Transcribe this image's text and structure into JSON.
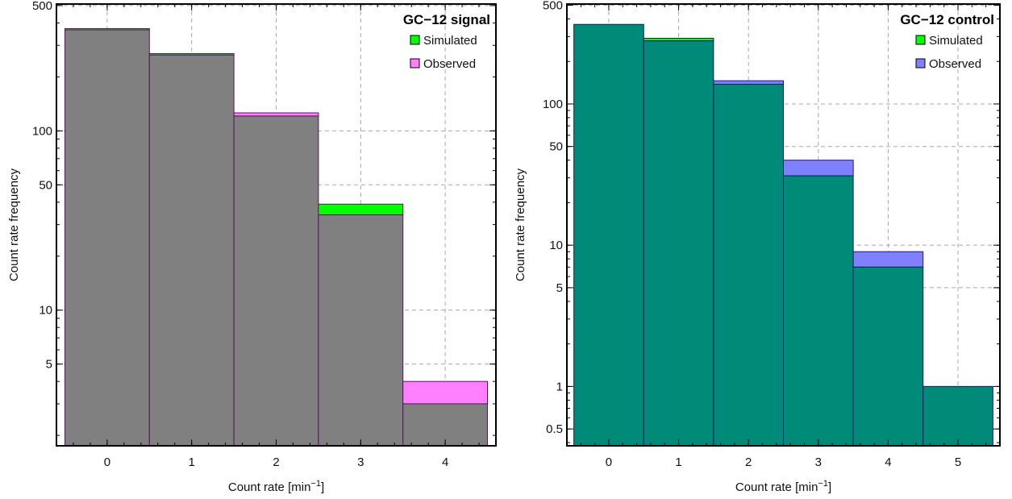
{
  "chart_data": [
    {
      "type": "bar",
      "title": "GC−12 signal",
      "xlabel": "Count rate [min",
      "xlabel_sup": "−1",
      "xlabel_end": "]",
      "ylabel": "Count rate frequency",
      "yscale": "log",
      "ylim": [
        1.75,
        510
      ],
      "xlim": [
        -0.6,
        4.6
      ],
      "grid": true,
      "legend_position": "top-right",
      "categories": [
        "0",
        "1",
        "2",
        "3",
        "4"
      ],
      "x": [
        0,
        1,
        2,
        3,
        4
      ],
      "yticks": [
        {
          "v": 500,
          "label": "500"
        },
        {
          "v": 100,
          "label": "100"
        },
        {
          "v": 50,
          "label": "50"
        },
        {
          "v": 10,
          "label": "10"
        },
        {
          "v": 5,
          "label": "5"
        }
      ],
      "gridlines_y": [
        500,
        100,
        50,
        10,
        5
      ],
      "series": [
        {
          "name": "Simulated",
          "color": "#00ff00",
          "values": [
            372,
            270,
            121,
            39,
            3
          ]
        },
        {
          "name": "Observed",
          "color": "#ff80ff",
          "values": [
            366,
            265,
            126,
            34,
            4
          ]
        }
      ],
      "overlap_color": "#808080",
      "edge_color": "#5a1060"
    },
    {
      "type": "bar",
      "title": "GC−12 control",
      "xlabel": "Count rate [min",
      "xlabel_sup": "−1",
      "xlabel_end": "]",
      "ylabel": "Count rate frequency",
      "yscale": "log",
      "ylim": [
        0.38,
        510
      ],
      "xlim": [
        -0.6,
        5.6
      ],
      "grid": true,
      "legend_position": "top-right",
      "categories": [
        "0",
        "1",
        "2",
        "3",
        "4",
        "5"
      ],
      "x": [
        0,
        1,
        2,
        3,
        4,
        5
      ],
      "yticks": [
        {
          "v": 500,
          "label": "500"
        },
        {
          "v": 100,
          "label": "100"
        },
        {
          "v": 50,
          "label": "50"
        },
        {
          "v": 10,
          "label": "10"
        },
        {
          "v": 5,
          "label": "5"
        },
        {
          "v": 1,
          "label": "1"
        },
        {
          "v": 0.5,
          "label": "0.5"
        }
      ],
      "gridlines_y": [
        500,
        100,
        50,
        10,
        5,
        1,
        0.5
      ],
      "series": [
        {
          "name": "Simulated",
          "color": "#00ff00",
          "values": [
            366,
            292,
            138,
            31,
            7,
            1
          ]
        },
        {
          "name": "Observed",
          "color": "#8080ff",
          "values": [
            366,
            280,
            146,
            40,
            9,
            1
          ]
        }
      ],
      "overlap_color": "#008b78",
      "edge_color": "#1a1a66"
    }
  ]
}
